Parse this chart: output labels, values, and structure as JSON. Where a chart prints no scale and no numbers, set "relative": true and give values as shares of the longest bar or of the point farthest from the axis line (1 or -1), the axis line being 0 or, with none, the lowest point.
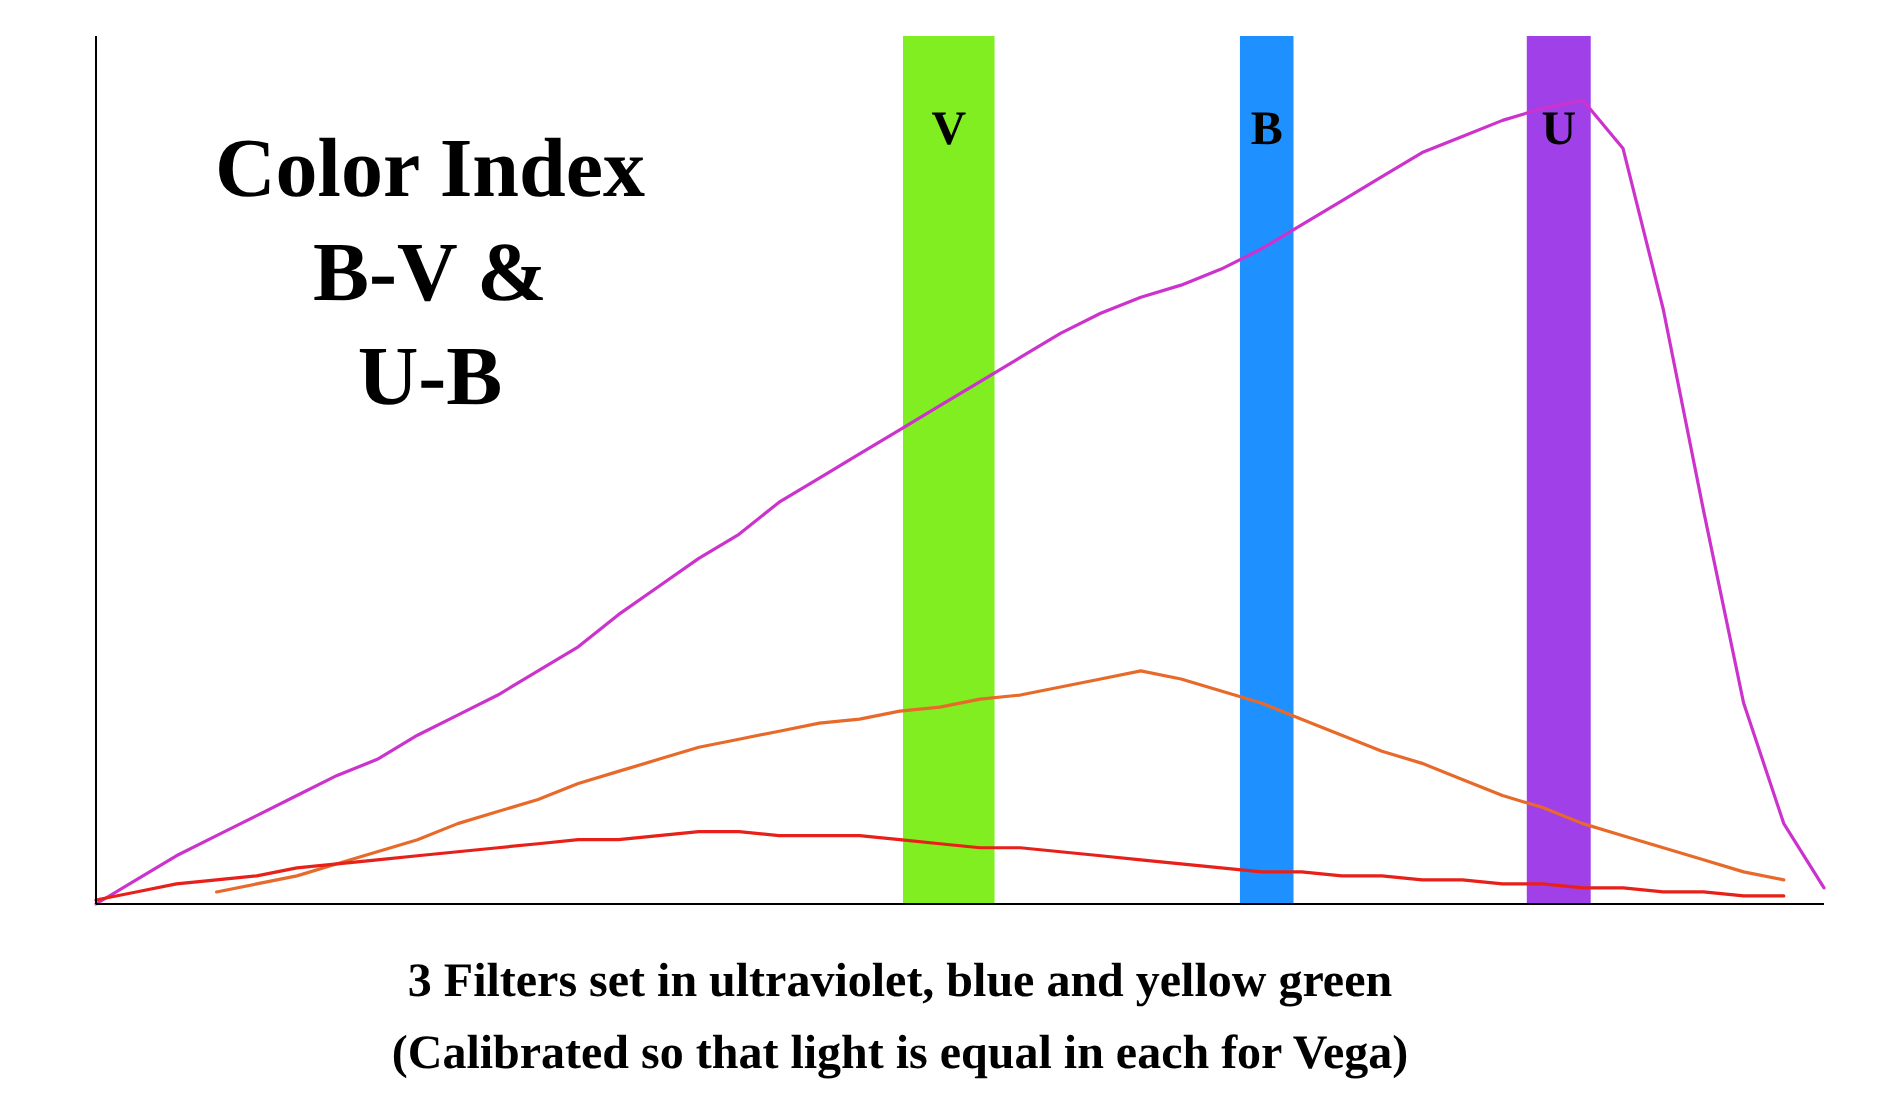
{
  "chart_data": {
    "type": "line",
    "title": "Color Index\nB-V &\nU-B",
    "relative": true,
    "marker": "none",
    "line_style": "solid",
    "categories": [
      null,
      null,
      null,
      null,
      null,
      null,
      null,
      null,
      null,
      null,
      null,
      null,
      null,
      null,
      null,
      null,
      null,
      null,
      null,
      null,
      null,
      null,
      null,
      null,
      null,
      null,
      null,
      null,
      null,
      null,
      null,
      null,
      null,
      null,
      null,
      null,
      null,
      null,
      null,
      null,
      null,
      null,
      null,
      null
    ],
    "series": [
      {
        "color": "#cc33cc",
        "values": [
          0,
          0.03,
          0.06,
          0.085,
          0.11,
          0.135,
          0.16,
          0.18,
          0.21,
          0.235,
          0.26,
          0.29,
          0.32,
          0.36,
          0.395,
          0.43,
          0.46,
          0.5,
          0.53,
          0.56,
          0.59,
          0.62,
          0.65,
          0.68,
          0.71,
          0.735,
          0.755,
          0.77,
          0.79,
          0.815,
          0.845,
          0.875,
          0.905,
          0.935,
          0.955,
          0.975,
          0.99,
          1,
          0.94,
          0.74,
          0.49,
          0.25,
          0.1,
          0.02
        ]
      },
      {
        "color": "#e86a2a",
        "values": [
          null,
          null,
          null,
          0.015,
          0.025,
          0.035,
          0.05,
          0.065,
          0.08,
          0.1,
          0.115,
          0.13,
          0.15,
          0.165,
          0.18,
          0.195,
          0.205,
          0.215,
          0.225,
          0.23,
          0.24,
          0.245,
          0.255,
          0.26,
          0.27,
          0.28,
          0.29,
          0.28,
          0.265,
          0.25,
          0.23,
          0.21,
          0.19,
          0.175,
          0.155,
          0.135,
          0.12,
          0.1,
          0.085,
          0.07,
          0.055,
          0.04,
          0.03,
          null
        ]
      },
      {
        "color": "#e8201a",
        "values": [
          0.005,
          0.015,
          0.025,
          0.03,
          0.035,
          0.045,
          0.05,
          0.055,
          0.06,
          0.065,
          0.07,
          0.075,
          0.08,
          0.08,
          0.085,
          0.09,
          0.09,
          0.085,
          0.085,
          0.085,
          0.08,
          0.075,
          0.07,
          0.07,
          0.065,
          0.06,
          0.055,
          0.05,
          0.045,
          0.04,
          0.04,
          0.035,
          0.035,
          0.03,
          0.03,
          0.025,
          0.025,
          0.02,
          0.02,
          0.015,
          0.015,
          0.01,
          0.01,
          null
        ]
      }
    ],
    "annotations": [
      "V",
      "B",
      "U",
      "3 Filters set in ultraviolet, blue and yellow green",
      "(Calibrated so that light is equal in each for Vega)"
    ]
  }
}
